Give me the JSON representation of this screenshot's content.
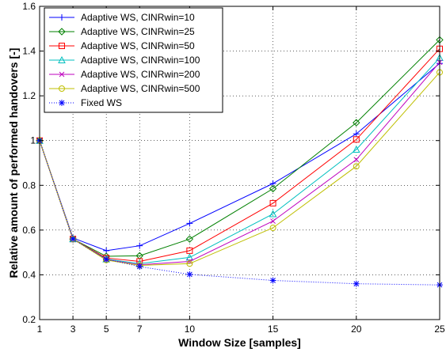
{
  "chart_data": {
    "type": "line",
    "xlabel": "Window Size [samples]",
    "ylabel": "Relative amount of performed handovers [-]",
    "xlim": [
      1,
      25
    ],
    "ylim": [
      0.2,
      1.6
    ],
    "xticks": [
      1,
      3,
      5,
      7,
      10,
      15,
      20,
      25
    ],
    "yticks": [
      0.2,
      0.4,
      0.6,
      0.8,
      1.0,
      1.2,
      1.4,
      1.6
    ],
    "xtick_labels": [
      "1",
      "3",
      "5",
      "7",
      "10",
      "15",
      "20",
      "25"
    ],
    "ytick_labels": [
      "0.2",
      "0.4",
      "0.6",
      "0.8",
      "1",
      "1.2",
      "1.4",
      "1.6"
    ],
    "grid": "dotted",
    "legend_position": "top-left",
    "x": [
      1,
      3,
      5,
      7,
      10,
      15,
      20,
      25
    ],
    "series": [
      {
        "name": "Adaptive WS, CINRwin=10",
        "color": "#0000ff",
        "marker": "plus",
        "line": "solid",
        "values": [
          1.0,
          0.565,
          0.508,
          0.53,
          0.63,
          0.808,
          1.03,
          1.345
        ]
      },
      {
        "name": "Adaptive WS, CINRwin=25",
        "color": "#008000",
        "marker": "diamond",
        "line": "solid",
        "values": [
          1.0,
          0.56,
          0.483,
          0.485,
          0.56,
          0.785,
          1.08,
          1.45
        ]
      },
      {
        "name": "Adaptive WS, CINRwin=50",
        "color": "#ff0000",
        "marker": "square",
        "line": "solid",
        "values": [
          1.0,
          0.56,
          0.475,
          0.46,
          0.508,
          0.72,
          1.005,
          1.41
        ]
      },
      {
        "name": "Adaptive WS, CINRwin=100",
        "color": "#00bfbf",
        "marker": "triangle",
        "line": "solid",
        "values": [
          1.0,
          0.56,
          0.47,
          0.45,
          0.478,
          0.672,
          0.96,
          1.37
        ]
      },
      {
        "name": "Adaptive WS, CINRwin=200",
        "color": "#bf00bf",
        "marker": "x",
        "line": "solid",
        "values": [
          1.0,
          0.56,
          0.468,
          0.445,
          0.46,
          0.64,
          0.915,
          1.35
        ]
      },
      {
        "name": "Adaptive WS, CINRwin=500",
        "color": "#bfbf00",
        "marker": "circle",
        "line": "solid",
        "values": [
          1.0,
          0.56,
          0.466,
          0.442,
          0.45,
          0.61,
          0.885,
          1.305
        ]
      },
      {
        "name": "Fixed WS",
        "color": "#0000ff",
        "marker": "star",
        "line": "dotted",
        "values": [
          1.0,
          0.56,
          0.47,
          0.437,
          0.402,
          0.375,
          0.36,
          0.355
        ]
      }
    ]
  }
}
